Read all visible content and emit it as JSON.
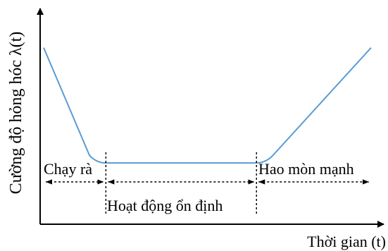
{
  "chart_data": {
    "type": "line",
    "title": "",
    "xlabel": "Thời gian (t)",
    "ylabel": "Cường độ hỏng hóc λ(t)",
    "series": [
      {
        "values": [
          {
            "x": 0.0,
            "y": 0.77
          },
          {
            "x": 0.14,
            "y": 0.2
          },
          {
            "x": 0.19,
            "y": 0.16
          },
          {
            "x": 0.65,
            "y": 0.16
          },
          {
            "x": 0.7,
            "y": 0.2
          },
          {
            "x": 1.0,
            "y": 0.77
          }
        ]
      }
    ],
    "phases": [
      {
        "label": "Chạy rà",
        "start": 0.0,
        "end": 0.19
      },
      {
        "label": "Hoạt động ổn định",
        "start": 0.19,
        "end": 0.65
      },
      {
        "label": "Hao mòn mạnh",
        "start": 0.65,
        "end": 1.0
      }
    ],
    "xlim": [
      0,
      1
    ],
    "ylim": [
      0,
      1
    ],
    "line_color": "#5B9BD5",
    "axis_color": "#000000"
  }
}
